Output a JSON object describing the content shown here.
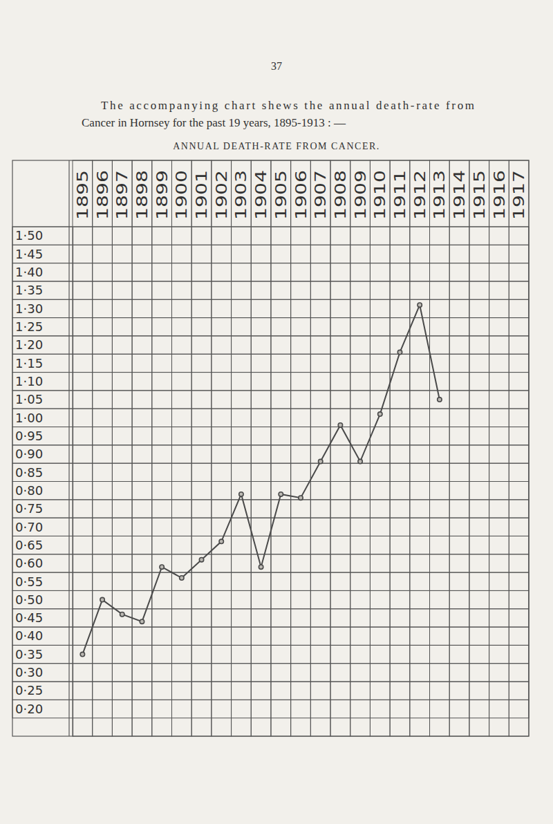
{
  "chart_data": {
    "type": "line",
    "title": "ANNUAL DEATH-RATE FROM CANCER.",
    "subtitle": [
      "The accompanying chart shews the annual death-rate from",
      "Cancer in Hornsey for the past 19 years, 1895-1913 : —"
    ],
    "annotations": [
      "37"
    ],
    "categories": [
      "1895",
      "1896",
      "1897",
      "1898",
      "1899",
      "1900",
      "1901",
      "1902",
      "1903",
      "1904",
      "1905",
      "1906",
      "1907",
      "1908",
      "1909",
      "1910",
      "1911",
      "1912",
      "1913",
      "1914",
      "1915",
      "1916",
      "1917"
    ],
    "values": [
      0.35,
      0.5,
      0.46,
      0.44,
      0.59,
      0.56,
      0.61,
      0.66,
      0.79,
      0.59,
      0.79,
      0.78,
      0.88,
      0.98,
      0.88,
      1.01,
      1.18,
      1.31,
      1.05,
      null,
      null,
      null,
      null
    ],
    "color": "#4a4a4a",
    "marker": "circle",
    "line_style": "solid",
    "grid": true,
    "ylim": [
      0.125,
      1.525
    ],
    "yticks": [
      {
        "value": 1.5,
        "label": "1·50"
      },
      {
        "value": 1.45,
        "label": "1·45"
      },
      {
        "value": 1.4,
        "label": "1·40"
      },
      {
        "value": 1.35,
        "label": "1·35"
      },
      {
        "value": 1.3,
        "label": "1·30"
      },
      {
        "value": 1.25,
        "label": "1·25"
      },
      {
        "value": 1.2,
        "label": "1·20"
      },
      {
        "value": 1.15,
        "label": "1·15"
      },
      {
        "value": 1.1,
        "label": "1·10"
      },
      {
        "value": 1.05,
        "label": "1·05"
      },
      {
        "value": 1.0,
        "label": "1·00"
      },
      {
        "value": 0.95,
        "label": "0·95"
      },
      {
        "value": 0.9,
        "label": "0·90"
      },
      {
        "value": 0.85,
        "label": "0·85"
      },
      {
        "value": 0.8,
        "label": "0·80"
      },
      {
        "value": 0.75,
        "label": "0·75"
      },
      {
        "value": 0.7,
        "label": "0·70"
      },
      {
        "value": 0.65,
        "label": "0·65"
      },
      {
        "value": 0.6,
        "label": "0·60"
      },
      {
        "value": 0.55,
        "label": "0·55"
      },
      {
        "value": 0.5,
        "label": "0·50"
      },
      {
        "value": 0.45,
        "label": "0·45"
      },
      {
        "value": 0.4,
        "label": "0·40"
      },
      {
        "value": 0.35,
        "label": "0·35"
      },
      {
        "value": 0.3,
        "label": "0·30"
      },
      {
        "value": 0.25,
        "label": "0·25"
      },
      {
        "value": 0.2,
        "label": "0·20"
      }
    ]
  }
}
